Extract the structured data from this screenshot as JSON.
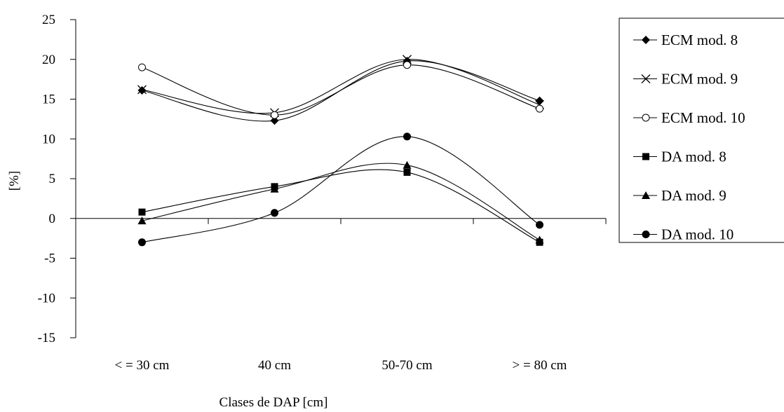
{
  "chart_data": {
    "type": "line",
    "title": "",
    "xlabel": "Clases de DAP [cm]",
    "ylabel": "[%]",
    "categories": [
      "< = 30 cm",
      "40 cm",
      "50-70 cm",
      "> = 80 cm"
    ],
    "ylim": [
      -15,
      25
    ],
    "yticks": [
      "25",
      "20",
      "15",
      "10",
      "5",
      "0",
      "-5",
      "-10",
      "-15"
    ],
    "ytick_values": [
      25,
      20,
      15,
      10,
      5,
      0,
      -5,
      -10,
      -15
    ],
    "grid": false,
    "legend_position": "right",
    "smooth": true,
    "series": [
      {
        "name": "ECM mod. 8",
        "marker": "diamond",
        "values": [
          16.1,
          12.3,
          19.8,
          14.8
        ]
      },
      {
        "name": "ECM mod. 9",
        "marker": "x",
        "values": [
          16.2,
          13.3,
          20.0,
          14.3
        ]
      },
      {
        "name": "ECM mod. 10",
        "marker": "open-circle",
        "values": [
          19.0,
          13.0,
          19.3,
          13.8
        ]
      },
      {
        "name": "DA mod. 8",
        "marker": "filled-square",
        "values": [
          0.8,
          4.0,
          5.8,
          -3.0
        ]
      },
      {
        "name": "DA mod. 9",
        "marker": "filled-triangle",
        "values": [
          -0.3,
          3.7,
          6.7,
          -2.7
        ]
      },
      {
        "name": "DA mod. 10",
        "marker": "filled-circle",
        "values": [
          -3.0,
          0.7,
          10.3,
          -0.8
        ]
      }
    ]
  }
}
